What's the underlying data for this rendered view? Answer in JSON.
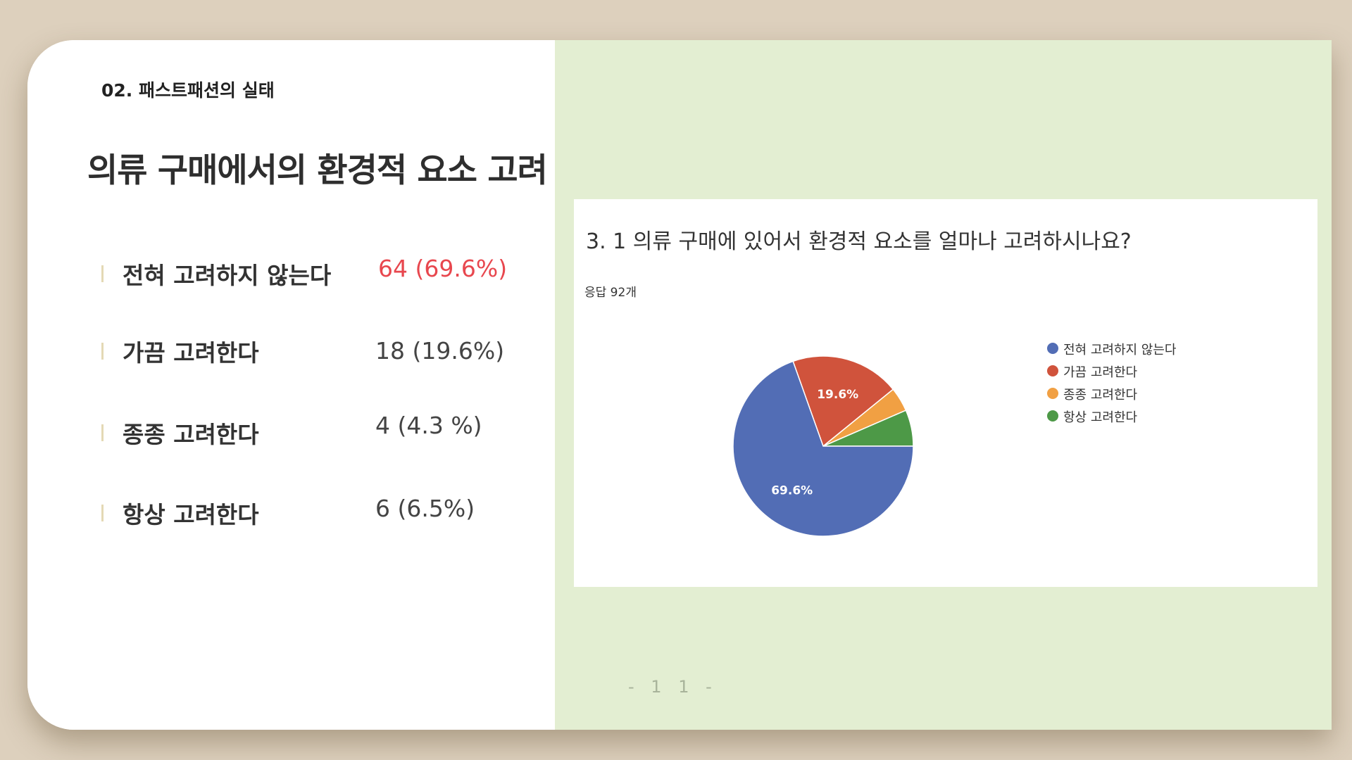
{
  "section_label": "02. 패스트패션의 실태",
  "headline": "의류 구매에서의 환경적 요소 고려",
  "summary": [
    {
      "label": "전혀 고려하지 않는다",
      "value": "64 (69.6%)",
      "highlight": true
    },
    {
      "label": "가끔 고려한다",
      "value": "18 (19.6%)",
      "highlight": false
    },
    {
      "label": "종종 고려한다",
      "value": "4 (4.3 %)",
      "highlight": false
    },
    {
      "label": "항상 고려한다",
      "value": "6 (6.5%)",
      "highlight": false
    }
  ],
  "page_number": "- 1 1 -",
  "colors": {
    "highlight": "#e8474e",
    "right_panel": "#e3eed2",
    "background": "#ddd0bd"
  },
  "chart_data": {
    "type": "pie",
    "title": "3. 1 의류 구매에 있어서  환경적 요소를 얼마나 고려하시나요?",
    "subtitle": "응답 92개",
    "categories": [
      "전혀 고려하지 않는다",
      "가끔 고려한다",
      "종종 고려한다",
      "항상 고려한다"
    ],
    "values": [
      64,
      18,
      4,
      6
    ],
    "data_labels": [
      "69.6%",
      "19.6%",
      "",
      ""
    ],
    "colors": [
      "#526db5",
      "#d0533c",
      "#f1a043",
      "#4d9947"
    ],
    "legend_position": "right"
  }
}
